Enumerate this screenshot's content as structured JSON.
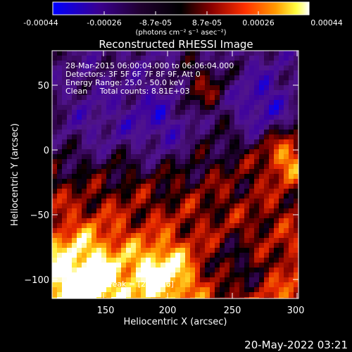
{
  "colorbar": {
    "tick_labels": [
      "-0.00044",
      "-0.00026",
      "-8.7e-05",
      "8.7e-05",
      "0.00026",
      "0.00044"
    ],
    "unit_label": "(photons cm⁻² s⁻¹ asec⁻²)",
    "colors": [
      "#0000ff",
      "#2b0060",
      "#000000",
      "#8a0000",
      "#ff3000",
      "#ff9a00",
      "#ffff40",
      "#ffffff"
    ]
  },
  "plot": {
    "title": "Reconstructed RHESSI Image",
    "xlabel": "Heliocentric X (arcsec)",
    "ylabel": "Heliocentric Y (arcsec)",
    "x_ticks": [
      "150",
      "200",
      "250",
      "300"
    ],
    "y_ticks": [
      "50",
      "0",
      "−50",
      "−100"
    ],
    "x_range": [
      110,
      300
    ],
    "y_range": [
      -115,
      75
    ],
    "annotations": [
      "28-Mar-2015 06:00:04.000 to 06:06:04.000",
      "Detectors: 3F 5F 6F 7F 8F 9F, Att 0",
      "Energy Range: 25.0 - 50.0 keV",
      "Clean     Total counts: 8.81E+03"
    ],
    "peak_label": "Position of Peak = [296,-16]"
  },
  "footer": {
    "timestamp": "20-May-2022 03:21"
  }
}
